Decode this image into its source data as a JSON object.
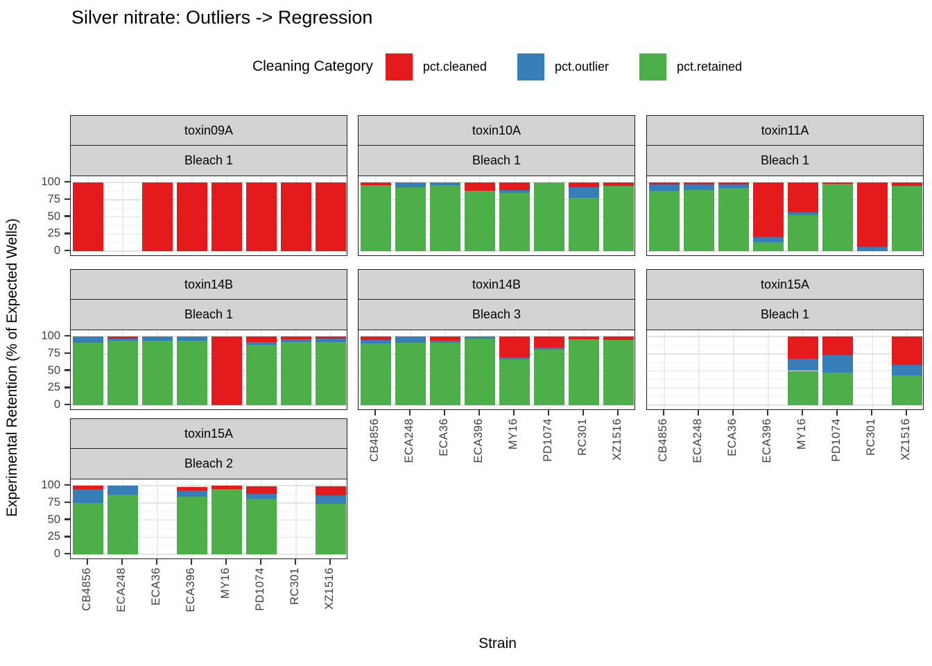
{
  "title": "Silver nitrate: Outliers -> Regression",
  "legend": {
    "title": "Cleaning Category",
    "items": [
      {
        "label": "pct.cleaned",
        "color": "#e41a1c"
      },
      {
        "label": "pct.outlier",
        "color": "#377eb8"
      },
      {
        "label": "pct.retained",
        "color": "#4daf4a"
      }
    ]
  },
  "axes": {
    "x_title": "Strain",
    "y_title": "Experimental Retention (% of Expected Wells)",
    "y_ticks": [
      100,
      75,
      50,
      25,
      0
    ]
  },
  "chart_data": {
    "type": "bar",
    "stacked": true,
    "ylim": [
      0,
      100
    ],
    "grid": true,
    "legend_position": "top",
    "categories": [
      "CB4856",
      "ECA248",
      "ECA36",
      "ECA396",
      "MY16",
      "PD1074",
      "RC301",
      "XZ1516"
    ],
    "series_names": [
      "pct.cleaned",
      "pct.outlier",
      "pct.retained"
    ],
    "colors": {
      "cleaned": "#e41a1c",
      "outlier": "#377eb8",
      "retained": "#4daf4a"
    },
    "panels": [
      {
        "toxin": "toxin09A",
        "bleach": "Bleach 1",
        "row": 0,
        "col": 0,
        "show_x_labels": false,
        "values": [
          {
            "cleaned": 100,
            "outlier": 0,
            "retained": 0
          },
          null,
          {
            "cleaned": 100,
            "outlier": 0,
            "retained": 0
          },
          {
            "cleaned": 100,
            "outlier": 0,
            "retained": 0
          },
          {
            "cleaned": 100,
            "outlier": 0,
            "retained": 0
          },
          {
            "cleaned": 100,
            "outlier": 0,
            "retained": 0
          },
          {
            "cleaned": 100,
            "outlier": 0,
            "retained": 0
          },
          {
            "cleaned": 100,
            "outlier": 0,
            "retained": 0
          }
        ]
      },
      {
        "toxin": "toxin10A",
        "bleach": "Bleach 1",
        "row": 0,
        "col": 1,
        "show_x_labels": false,
        "values": [
          {
            "cleaned": 4,
            "outlier": 0,
            "retained": 96
          },
          {
            "cleaned": 0,
            "outlier": 7,
            "retained": 93
          },
          {
            "cleaned": 0,
            "outlier": 4,
            "retained": 96
          },
          {
            "cleaned": 12,
            "outlier": 0,
            "retained": 88
          },
          {
            "cleaned": 11,
            "outlier": 4,
            "retained": 85
          },
          {
            "cleaned": 0,
            "outlier": 0,
            "retained": 100
          },
          {
            "cleaned": 7,
            "outlier": 15,
            "retained": 78
          },
          {
            "cleaned": 5,
            "outlier": 0,
            "retained": 95
          }
        ]
      },
      {
        "toxin": "toxin11A",
        "bleach": "Bleach 1",
        "row": 0,
        "col": 2,
        "show_x_labels": false,
        "values": [
          {
            "cleaned": 3,
            "outlier": 9,
            "retained": 88
          },
          {
            "cleaned": 3,
            "outlier": 8,
            "retained": 89
          },
          {
            "cleaned": 3,
            "outlier": 5,
            "retained": 92
          },
          {
            "cleaned": 80,
            "outlier": 7,
            "retained": 13
          },
          {
            "cleaned": 43,
            "outlier": 4,
            "retained": 53
          },
          {
            "cleaned": 2,
            "outlier": 0,
            "retained": 98
          },
          {
            "cleaned": 94,
            "outlier": 6,
            "retained": 0
          },
          {
            "cleaned": 5,
            "outlier": 0,
            "retained": 95
          }
        ]
      },
      {
        "toxin": "toxin14B",
        "bleach": "Bleach 1",
        "row": 1,
        "col": 0,
        "show_x_labels": false,
        "values": [
          {
            "cleaned": 0,
            "outlier": 9,
            "retained": 91
          },
          {
            "cleaned": 3,
            "outlier": 3,
            "retained": 94
          },
          {
            "cleaned": 0,
            "outlier": 6,
            "retained": 94
          },
          {
            "cleaned": 0,
            "outlier": 6,
            "retained": 94
          },
          {
            "cleaned": 100,
            "outlier": 0,
            "retained": 0
          },
          {
            "cleaned": 8,
            "outlier": 4,
            "retained": 88
          },
          {
            "cleaned": 4,
            "outlier": 4,
            "retained": 92
          },
          {
            "cleaned": 3,
            "outlier": 5,
            "retained": 92
          }
        ]
      },
      {
        "toxin": "toxin14B",
        "bleach": "Bleach 3",
        "row": 1,
        "col": 1,
        "show_x_labels": true,
        "values": [
          {
            "cleaned": 5,
            "outlier": 5,
            "retained": 90
          },
          {
            "cleaned": 0,
            "outlier": 9,
            "retained": 91
          },
          {
            "cleaned": 6,
            "outlier": 3,
            "retained": 91
          },
          {
            "cleaned": 0,
            "outlier": 3,
            "retained": 97
          },
          {
            "cleaned": 30,
            "outlier": 3,
            "retained": 67
          },
          {
            "cleaned": 16,
            "outlier": 3,
            "retained": 81
          },
          {
            "cleaned": 4,
            "outlier": 0,
            "retained": 96
          },
          {
            "cleaned": 5,
            "outlier": 0,
            "retained": 95
          }
        ]
      },
      {
        "toxin": "toxin15A",
        "bleach": "Bleach 1",
        "row": 1,
        "col": 2,
        "show_x_labels": true,
        "values": [
          null,
          null,
          null,
          null,
          {
            "cleaned": 32,
            "outlier": 18,
            "retained": 50
          },
          {
            "cleaned": 27,
            "outlier": 26,
            "retained": 47
          },
          null,
          {
            "cleaned": 41,
            "outlier": 16,
            "retained": 43
          }
        ]
      },
      {
        "toxin": "toxin15A",
        "bleach": "Bleach 2",
        "row": 2,
        "col": 0,
        "show_x_labels": true,
        "values": [
          {
            "cleaned": 5,
            "outlier": 20,
            "retained": 75
          },
          {
            "cleaned": 0,
            "outlier": 13,
            "retained": 87
          },
          null,
          {
            "cleaned": 5,
            "outlier": 9,
            "retained": 84
          },
          {
            "cleaned": 5,
            "outlier": 0,
            "retained": 95
          },
          {
            "cleaned": 11,
            "outlier": 7,
            "retained": 81
          },
          null,
          {
            "cleaned": 13,
            "outlier": 12,
            "retained": 74
          }
        ]
      }
    ]
  }
}
